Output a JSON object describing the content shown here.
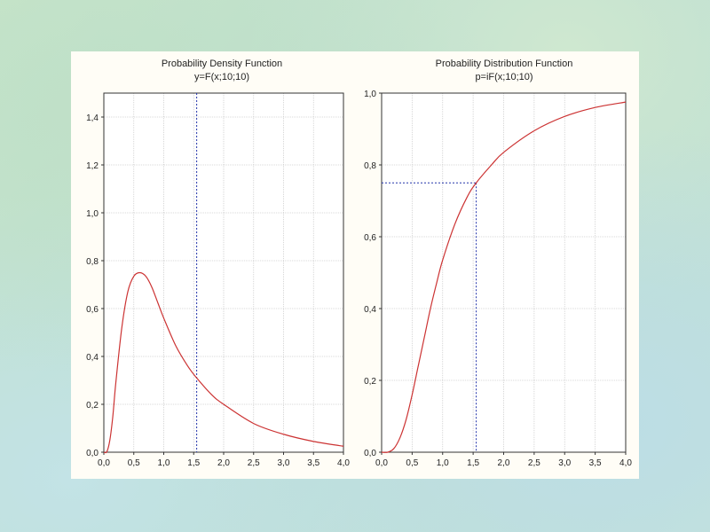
{
  "chart_data": [
    {
      "type": "line",
      "title": "Probability Density Function",
      "subtitle": "y=F(x;10;10)",
      "xlim": [
        0,
        4
      ],
      "ylim": [
        0,
        1.5
      ],
      "x_ticks": [
        "0,0",
        "0,5",
        "1,0",
        "1,5",
        "2,0",
        "2,5",
        "3,0",
        "3,5",
        "4,0"
      ],
      "y_ticks": [
        "0,0",
        "0,2",
        "0,4",
        "0,6",
        "0,8",
        "1,0",
        "1,2",
        "1,4"
      ],
      "grid": true,
      "marker_x": 1.55,
      "curve_color": "#cc3333",
      "marker_color": "#2233aa",
      "series": [
        {
          "x": [
            0.0,
            0.05,
            0.1,
            0.15,
            0.2,
            0.3,
            0.4,
            0.5,
            0.6,
            0.7,
            0.8,
            0.9,
            1.0,
            1.2,
            1.4,
            1.55,
            1.8,
            2.0,
            2.5,
            3.0,
            3.5,
            4.0
          ],
          "y": [
            0.0,
            0.002,
            0.05,
            0.15,
            0.29,
            0.52,
            0.67,
            0.735,
            0.75,
            0.735,
            0.69,
            0.625,
            0.56,
            0.445,
            0.36,
            0.31,
            0.24,
            0.2,
            0.12,
            0.075,
            0.045,
            0.025
          ]
        }
      ]
    },
    {
      "type": "line",
      "title": "Probability Distribution Function",
      "subtitle": "p=iF(x;10;10)",
      "xlim": [
        0,
        4
      ],
      "ylim": [
        0,
        1.0
      ],
      "x_ticks": [
        "0,0",
        "0,5",
        "1,0",
        "1,5",
        "2,0",
        "2,5",
        "3,0",
        "3,5",
        "4,0"
      ],
      "y_ticks": [
        "0,0",
        "0,2",
        "0,4",
        "0,6",
        "0,8",
        "1,0"
      ],
      "grid": true,
      "marker_x": 1.55,
      "marker_y": 0.75,
      "curve_color": "#cc3333",
      "marker_color": "#2233aa",
      "series": [
        {
          "x": [
            0.0,
            0.1,
            0.2,
            0.3,
            0.4,
            0.5,
            0.6,
            0.7,
            0.8,
            0.9,
            1.0,
            1.2,
            1.4,
            1.55,
            1.8,
            2.0,
            2.5,
            3.0,
            3.5,
            4.0
          ],
          "y": [
            0.0,
            0.0,
            0.01,
            0.04,
            0.09,
            0.16,
            0.24,
            0.32,
            0.4,
            0.47,
            0.535,
            0.635,
            0.71,
            0.75,
            0.8,
            0.835,
            0.895,
            0.935,
            0.96,
            0.975
          ]
        }
      ]
    }
  ]
}
